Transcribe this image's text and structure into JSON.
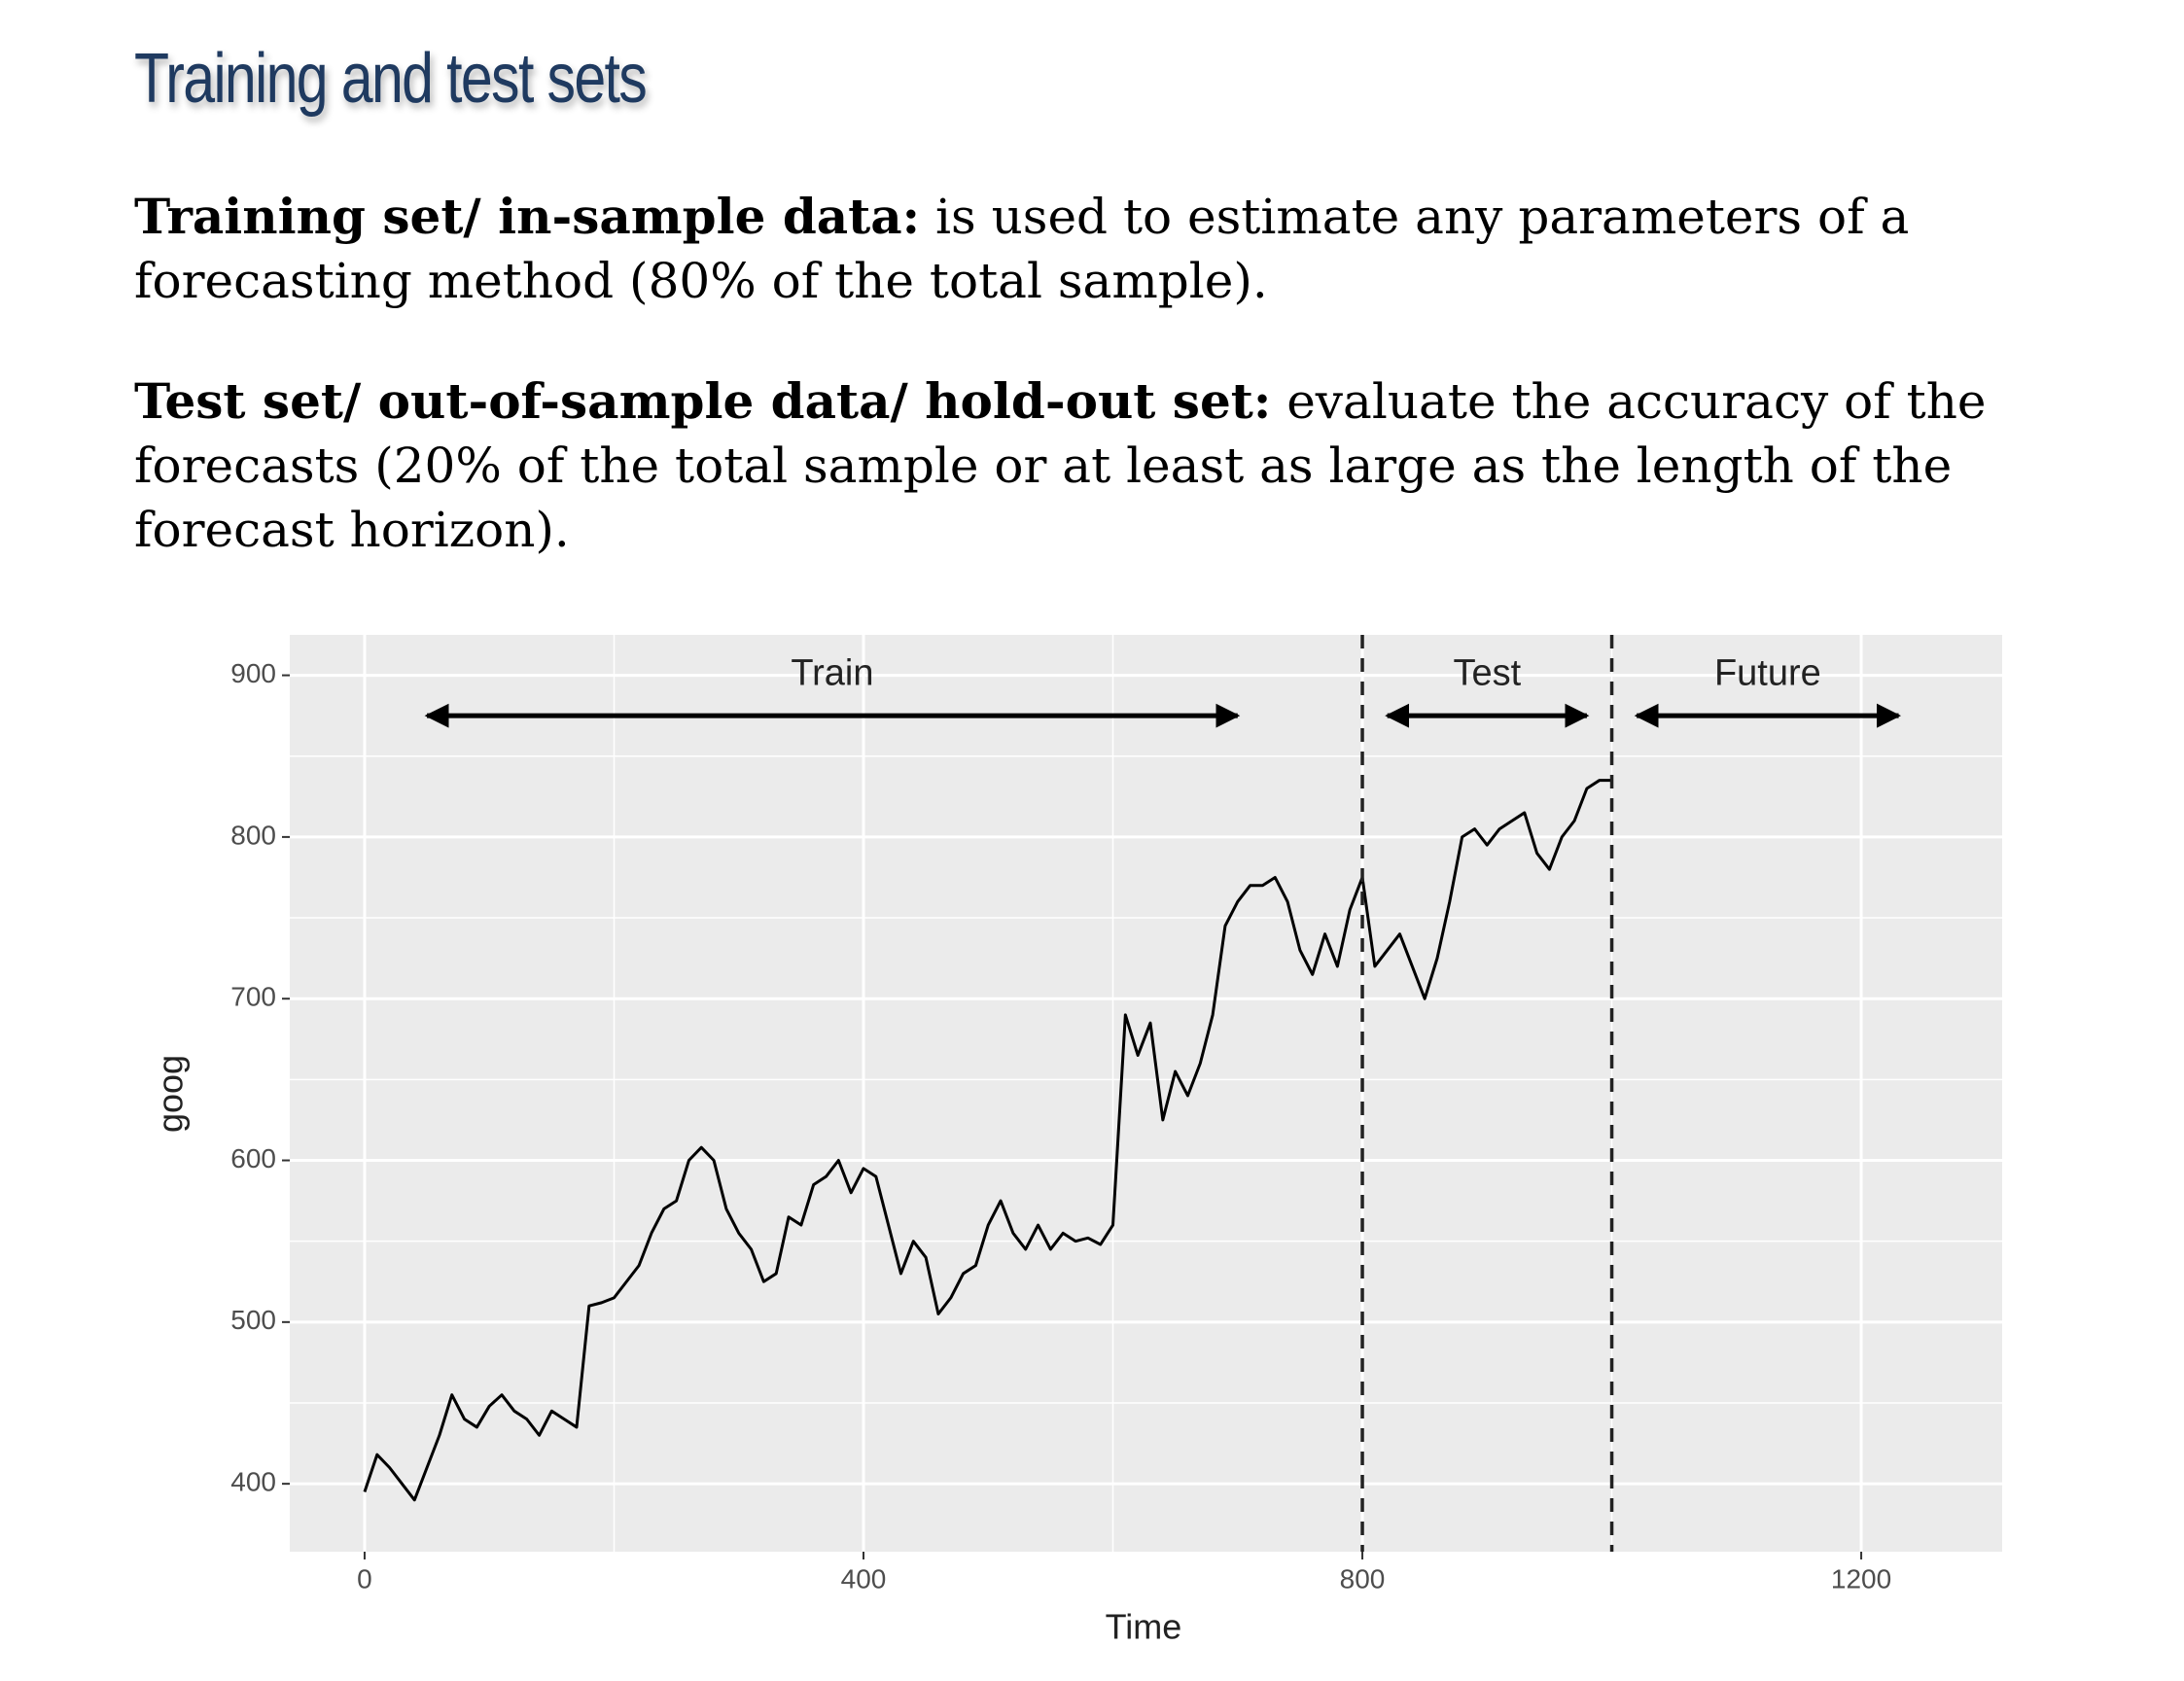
{
  "header": {
    "title": "Training and test sets"
  },
  "paragraphs": [
    {
      "bold": "Training set/ in-sample data:",
      "text": "is used to estimate any parameters of a forecasting method (80% of the total sample)."
    },
    {
      "bold": "Test set/ out-of-sample data/ hold-out set:",
      "text": "evaluate the accuracy of the forecasts (20% of the total sample or at least as large as the length of the forecast horizon)."
    }
  ],
  "chart_data": {
    "type": "line",
    "x_label": "Time",
    "y_label": "goog",
    "xlim": [
      -60,
      1313
    ],
    "ylim": [
      358,
      925
    ],
    "xticks": [
      0,
      400,
      800,
      1200
    ],
    "yticks": [
      400,
      500,
      600,
      700,
      800,
      900
    ],
    "grid": true,
    "vlines": [
      800,
      1000
    ],
    "annotations": [
      {
        "text": "Train",
        "x": 375,
        "y": 900,
        "from": 50,
        "to": 700,
        "arrow_y": 875
      },
      {
        "text": "Test",
        "x": 900,
        "y": 900,
        "from": 820,
        "to": 980,
        "arrow_y": 875
      },
      {
        "text": "Future",
        "x": 1125,
        "y": 900,
        "from": 1020,
        "to": 1230,
        "arrow_y": 875
      }
    ],
    "series": [
      {
        "name": "goog",
        "color": "#000000",
        "x": [
          0,
          10,
          20,
          30,
          40,
          50,
          60,
          70,
          80,
          90,
          100,
          110,
          120,
          130,
          140,
          150,
          160,
          170,
          180,
          190,
          200,
          210,
          220,
          230,
          240,
          250,
          260,
          270,
          280,
          290,
          300,
          310,
          320,
          330,
          340,
          350,
          360,
          370,
          380,
          390,
          400,
          410,
          420,
          430,
          440,
          450,
          460,
          470,
          480,
          490,
          500,
          510,
          520,
          530,
          540,
          550,
          560,
          570,
          580,
          590,
          600,
          610,
          620,
          630,
          640,
          650,
          660,
          670,
          680,
          690,
          700,
          710,
          720,
          730,
          740,
          750,
          760,
          770,
          780,
          790,
          800,
          810,
          820,
          830,
          840,
          850,
          860,
          870,
          880,
          890,
          900,
          910,
          920,
          930,
          940,
          950,
          960,
          970,
          980,
          990,
          1000
        ],
        "values": [
          395,
          418,
          410,
          400,
          390,
          410,
          430,
          455,
          440,
          435,
          448,
          455,
          445,
          440,
          430,
          445,
          440,
          435,
          510,
          512,
          515,
          525,
          535,
          555,
          570,
          575,
          600,
          608,
          600,
          570,
          555,
          545,
          525,
          530,
          565,
          560,
          585,
          590,
          600,
          580,
          595,
          590,
          560,
          530,
          550,
          540,
          505,
          515,
          530,
          535,
          560,
          575,
          555,
          545,
          560,
          545,
          555,
          550,
          552,
          548,
          560,
          690,
          665,
          685,
          625,
          655,
          640,
          660,
          690,
          745,
          760,
          770,
          770,
          775,
          760,
          730,
          715,
          740,
          720,
          755,
          775,
          720,
          730,
          740,
          720,
          700,
          725,
          760,
          800,
          805,
          795,
          805,
          810,
          815,
          790,
          780,
          800,
          810,
          830,
          835,
          835
        ]
      }
    ]
  }
}
